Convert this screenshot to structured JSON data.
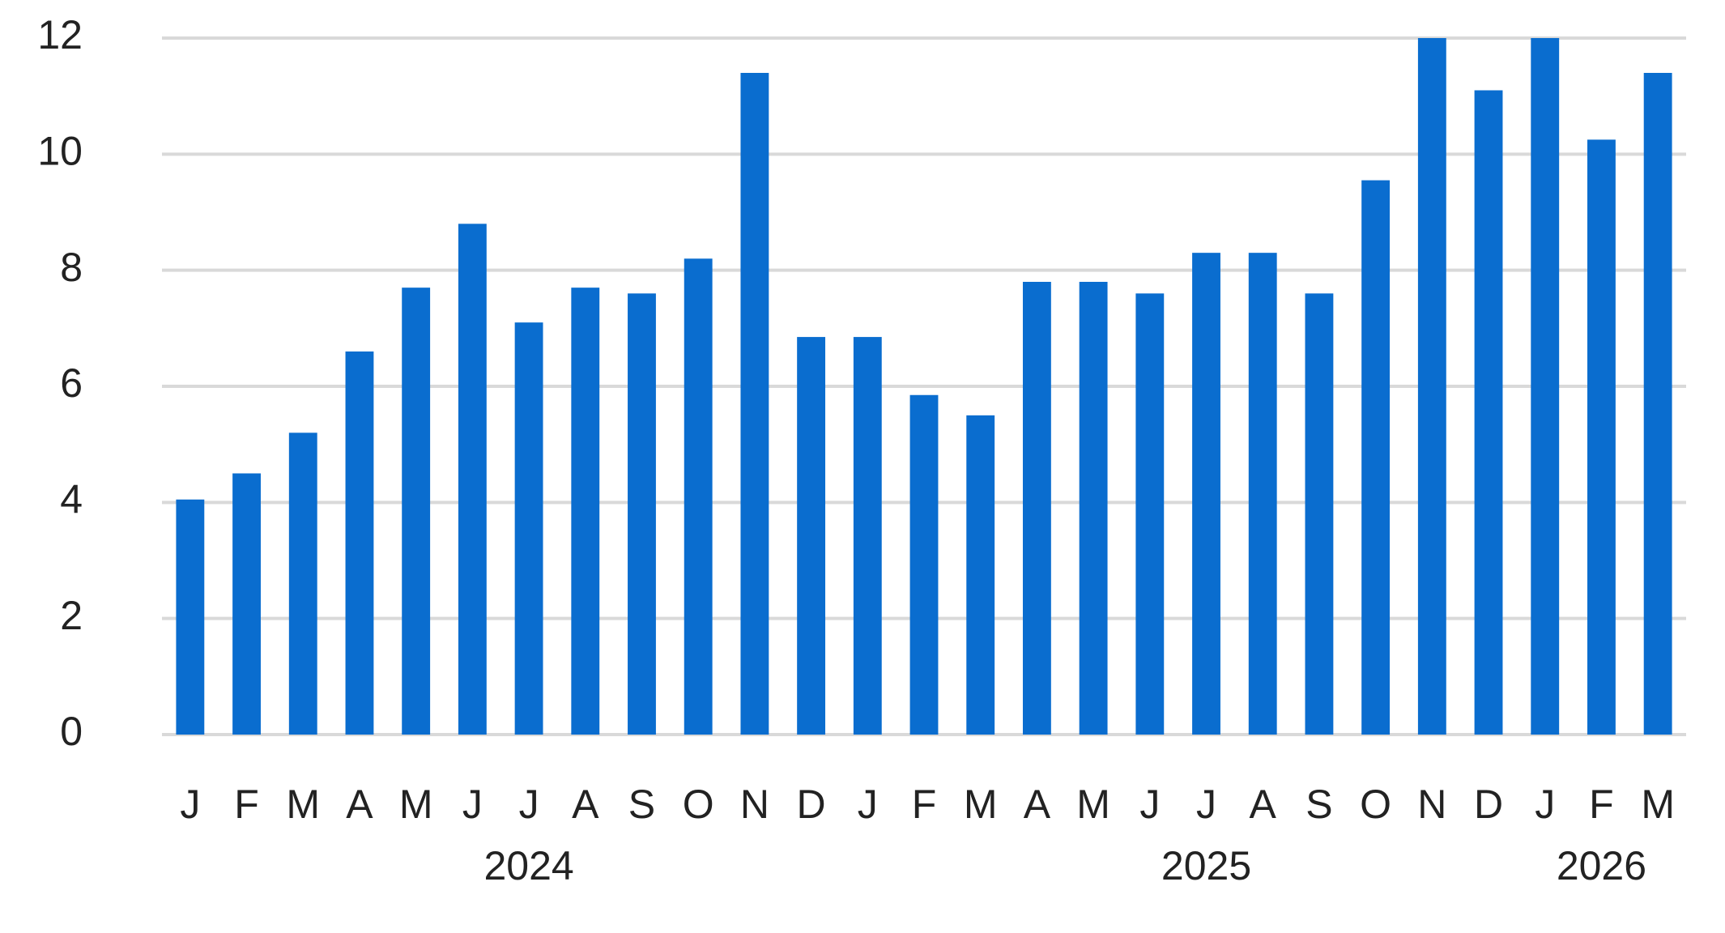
{
  "chart_data": {
    "type": "bar",
    "categories": [
      "J",
      "F",
      "M",
      "A",
      "M",
      "J",
      "J",
      "A",
      "S",
      "O",
      "N",
      "D",
      "J",
      "F",
      "M",
      "A",
      "M",
      "J",
      "J",
      "A",
      "S",
      "O",
      "N",
      "D",
      "J",
      "F",
      "M"
    ],
    "years": [
      null,
      null,
      null,
      null,
      null,
      null,
      "2024",
      null,
      null,
      null,
      null,
      null,
      null,
      null,
      null,
      null,
      null,
      null,
      "2025",
      null,
      null,
      null,
      null,
      null,
      null,
      "2026",
      null
    ],
    "values": [
      4.05,
      4.5,
      5.2,
      6.6,
      7.7,
      8.8,
      7.1,
      7.7,
      7.6,
      8.2,
      11.4,
      6.85,
      6.85,
      5.85,
      5.5,
      7.8,
      7.8,
      7.6,
      8.3,
      8.3,
      7.6,
      9.55,
      12,
      11.1,
      12,
      10.25,
      11.4
    ],
    "color": "#0a6dcf",
    "ylim": [
      0,
      12
    ],
    "yticks": [
      0,
      2,
      4,
      6,
      8,
      10,
      12
    ],
    "grid": true
  }
}
